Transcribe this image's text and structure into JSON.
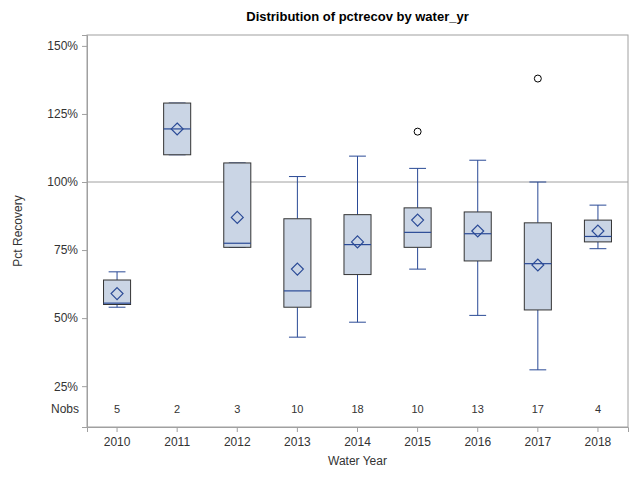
{
  "chart_data": {
    "type": "box",
    "title": "Distribution of pctrecov by water_yr",
    "x_label": "Water Year",
    "y_label": "Pct Recovery",
    "categories": [
      "2010",
      "2011",
      "2012",
      "2013",
      "2014",
      "2015",
      "2016",
      "2017",
      "2018"
    ],
    "boxes": [
      {
        "min": 54,
        "q1": 55,
        "median": 55.5,
        "q3": 64,
        "max": 67,
        "mean": 59,
        "outliers": []
      },
      {
        "min": 110,
        "q1": 110,
        "median": 119.5,
        "q3": 129,
        "max": 129,
        "mean": 119.5,
        "outliers": []
      },
      {
        "min": 76,
        "q1": 76,
        "median": 77.5,
        "q3": 107,
        "max": 107,
        "mean": 87,
        "outliers": []
      },
      {
        "min": 43,
        "q1": 54,
        "median": 60,
        "q3": 86.5,
        "max": 102,
        "mean": 68,
        "outliers": []
      },
      {
        "min": 48.5,
        "q1": 66,
        "median": 77,
        "q3": 88,
        "max": 109.5,
        "mean": 78,
        "outliers": []
      },
      {
        "min": 68,
        "q1": 76,
        "median": 81.5,
        "q3": 90.5,
        "max": 105,
        "mean": 86,
        "outliers": [
          118.5
        ]
      },
      {
        "min": 51,
        "q1": 71,
        "median": 81,
        "q3": 89,
        "max": 108,
        "mean": 82,
        "outliers": []
      },
      {
        "min": 31,
        "q1": 53,
        "median": 70,
        "q3": 85,
        "max": 100,
        "mean": 69.5,
        "outliers": [
          138
        ]
      },
      {
        "min": 75.5,
        "q1": 78,
        "median": 80,
        "q3": 86,
        "max": 91.5,
        "mean": 82,
        "outliers": []
      }
    ],
    "n_label": "Nobs",
    "n": [
      5,
      2,
      3,
      10,
      18,
      10,
      13,
      17,
      4
    ],
    "refline": 100,
    "color": "#cad5e5",
    "ylim": [
      10,
      154
    ],
    "yticks": [
      {
        "value": 25,
        "label": "25%"
      },
      {
        "value": 50,
        "label": "50%"
      },
      {
        "value": 75,
        "label": "75%"
      },
      {
        "value": 100,
        "label": "100%"
      },
      {
        "value": 125,
        "label": "125%"
      },
      {
        "value": 150,
        "label": "150%"
      }
    ],
    "grid": false
  }
}
